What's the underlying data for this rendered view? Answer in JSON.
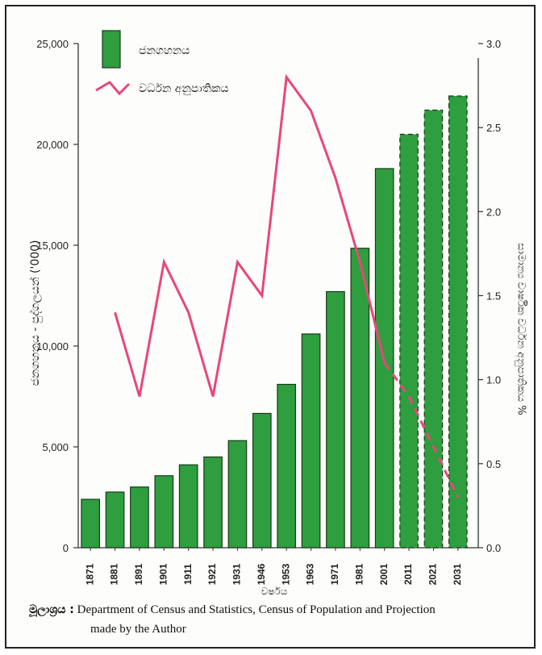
{
  "chart_data": {
    "type": "bar",
    "categories": [
      "1871",
      "1881",
      "1891",
      "1901",
      "1911",
      "1921",
      "1931",
      "1946",
      "1953",
      "1963",
      "1971",
      "1981",
      "2001",
      "2011",
      "2021",
      "2031"
    ],
    "series": [
      {
        "name": "ජනගහනය",
        "type": "bar",
        "axis": "left",
        "values": [
          2400,
          2760,
          3010,
          3570,
          4110,
          4500,
          5310,
          6660,
          8100,
          10600,
          12700,
          14850,
          18800,
          20500,
          21700,
          22400
        ],
        "projected_from": "2011",
        "color": "#2e9e3e"
      },
      {
        "name": "වර්ධන අනුපාතිකය",
        "type": "line",
        "axis": "right",
        "values": [
          null,
          1.4,
          0.9,
          1.7,
          1.4,
          0.9,
          1.7,
          1.5,
          2.8,
          2.6,
          2.2,
          1.7,
          1.1,
          0.9,
          0.6,
          0.3
        ],
        "projected_from": "2001",
        "color": "#e8467c"
      }
    ],
    "xlabel": "වර්ෂය",
    "ylabel": "ජනගහනය - පුද්ගලයන් ('000)",
    "y2label": "සාමාන්‍ය වාර්ෂික වර්ධන අනුපාතිකය %",
    "ylim": [
      0,
      25000
    ],
    "y2lim": [
      0,
      3.0
    ],
    "yticks": [
      "0",
      "5,000",
      "10,000",
      "15,000",
      "20,000",
      "25,000"
    ],
    "y2ticks": [
      "0.0",
      "0.5",
      "1.0",
      "1.5",
      "2.0",
      "2.5",
      "3.0"
    ],
    "legend": "top-left",
    "grid": false
  },
  "source": {
    "label": "මූලාශ්‍රය :",
    "text": "Department of Census and Statistics, Census of Population and Projection",
    "text2": "made by the Author"
  }
}
